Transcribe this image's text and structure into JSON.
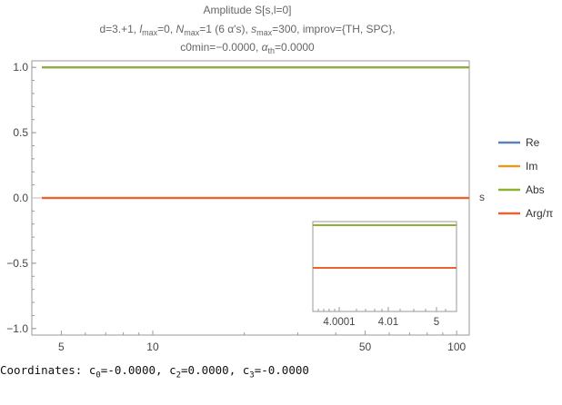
{
  "title": {
    "line1": "Amplitude S[s,l=0]",
    "line2_parts": {
      "d": "d=3.+1, ",
      "lmax_l": "l",
      "lmax_sub": "max",
      "lmax_val": "=0, ",
      "nmax_l": "N",
      "nmax_sub": "max",
      "nmax_val": "=1 (6 α's), ",
      "smax_l": "s",
      "smax_sub": "max",
      "smax_val": "=300, improv={TH, SPC},"
    },
    "line3_parts": {
      "c0min": "c0min=−0.0000, ",
      "alpha_l": "α",
      "alpha_sub": "th",
      "alpha_val": "=0.0000"
    }
  },
  "chart_data": [
    {
      "type": "line",
      "xscale": "log",
      "xlim": [
        4,
        110
      ],
      "ylim": [
        -1.05,
        1.05
      ],
      "xlabel": "s",
      "ylabel": "",
      "x_ticks": [
        5,
        10,
        50,
        100
      ],
      "x_tick_labels": [
        "5",
        "10",
        "50",
        "100"
      ],
      "y_ticks": [
        -1.0,
        -0.5,
        0.0,
        0.5,
        1.0
      ],
      "y_tick_labels": [
        "−1.0",
        "−0.5",
        "0.0",
        "0.5",
        "1.0"
      ],
      "grid": false,
      "legend": "right",
      "series": [
        {
          "name": "Re",
          "color": "#5e81b5",
          "x": [
            4,
            110
          ],
          "y": [
            1.0,
            1.0
          ]
        },
        {
          "name": "Im",
          "color": "#e19c24",
          "x": [
            4,
            110
          ],
          "y": [
            0.0,
            0.0
          ]
        },
        {
          "name": "Abs",
          "color": "#8fb032",
          "x": [
            4,
            110
          ],
          "y": [
            1.0,
            1.0
          ]
        },
        {
          "name": "Arg/π",
          "color": "#eb6235",
          "x": [
            4,
            110
          ],
          "y": [
            0.0,
            0.0
          ]
        }
      ]
    },
    {
      "type": "line",
      "role": "inset",
      "xscale": "log",
      "x_tick_labels": [
        "4.0001",
        "4.01",
        "5"
      ],
      "grid": false,
      "series": [
        {
          "name": "Re",
          "color": "#5e81b5",
          "y": [
            1.0,
            1.0
          ]
        },
        {
          "name": "Im",
          "color": "#e19c24",
          "y": [
            0.0,
            0.0
          ]
        },
        {
          "name": "Abs",
          "color": "#8fb032",
          "y": [
            1.0,
            1.0
          ]
        },
        {
          "name": "Arg/π",
          "color": "#eb6235",
          "y": [
            0.0,
            0.0
          ]
        }
      ]
    }
  ],
  "coordinates": {
    "prefix": "Coordinates: ",
    "c0_l": "c",
    "c0_sub": "0",
    "c0_val": "=-0.0000, ",
    "c2_l": "c",
    "c2_sub": "2",
    "c2_val": "=0.0000, ",
    "c3_l": "c",
    "c3_sub": "3",
    "c3_val": "=-0.0000"
  }
}
